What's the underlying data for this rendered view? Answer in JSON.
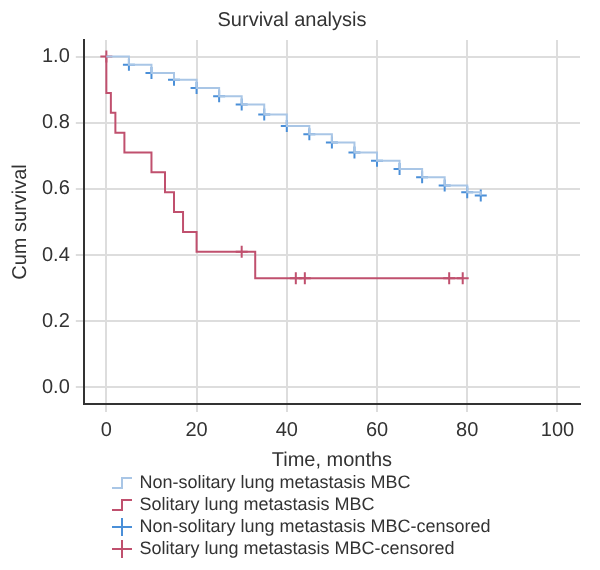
{
  "chart_data": {
    "type": "step",
    "title": "Survival analysis",
    "xlabel": "Time, months",
    "ylabel": "Cum survival",
    "xlim": [
      -5,
      105
    ],
    "xticks": [
      0,
      20,
      40,
      60,
      80,
      100
    ],
    "ylim": [
      -0.05,
      1.05
    ],
    "yticks": [
      {
        "value": 0,
        "label": "0.0"
      },
      {
        "value": 0.2,
        "label": "0.2"
      },
      {
        "value": 0.4,
        "label": "0.4"
      },
      {
        "value": 0.6,
        "label": "0.6"
      },
      {
        "value": 0.8,
        "label": "0.8"
      },
      {
        "value": 1,
        "label": "1.0"
      }
    ],
    "grid": true,
    "legend": "bottom",
    "series": [
      {
        "name": "Non-solitary lung metastasis MBC",
        "color": "#a9c6e6",
        "x": [
          0,
          5,
          10,
          15,
          20,
          25,
          30,
          35,
          40,
          45,
          50,
          55,
          60,
          65,
          70,
          75,
          80,
          83
        ],
        "values": [
          1,
          0.975,
          0.95,
          0.93,
          0.905,
          0.88,
          0.855,
          0.825,
          0.79,
          0.765,
          0.74,
          0.71,
          0.685,
          0.66,
          0.635,
          0.61,
          0.59,
          0.58
        ]
      },
      {
        "name": "Solitary lung metastasis MBC",
        "color": "#c0506e",
        "x": [
          0,
          0,
          1,
          2,
          4,
          10,
          13,
          15,
          17,
          20,
          33,
          79
        ],
        "values": [
          1,
          0.89,
          0.83,
          0.77,
          0.71,
          0.65,
          0.59,
          0.53,
          0.47,
          0.41,
          0.33,
          0.33
        ]
      },
      {
        "name": "Non-solitary lung metastasis MBC-censored",
        "type": "scatter",
        "marker": "cross",
        "color": "#4a8fd8",
        "x": [
          5,
          10,
          15,
          20,
          25,
          30,
          35,
          40,
          45,
          50,
          55,
          60,
          65,
          70,
          75,
          80,
          83
        ],
        "values": [
          0.975,
          0.95,
          0.93,
          0.905,
          0.88,
          0.855,
          0.825,
          0.79,
          0.765,
          0.74,
          0.71,
          0.685,
          0.66,
          0.635,
          0.61,
          0.59,
          0.58
        ]
      },
      {
        "name": "Solitary lung metastasis MBC-censored",
        "type": "scatter",
        "marker": "cross",
        "color": "#c0506e",
        "x": [
          0,
          30,
          42,
          44,
          76,
          79
        ],
        "values": [
          1,
          0.41,
          0.33,
          0.33,
          0.33,
          0.33
        ]
      }
    ]
  }
}
